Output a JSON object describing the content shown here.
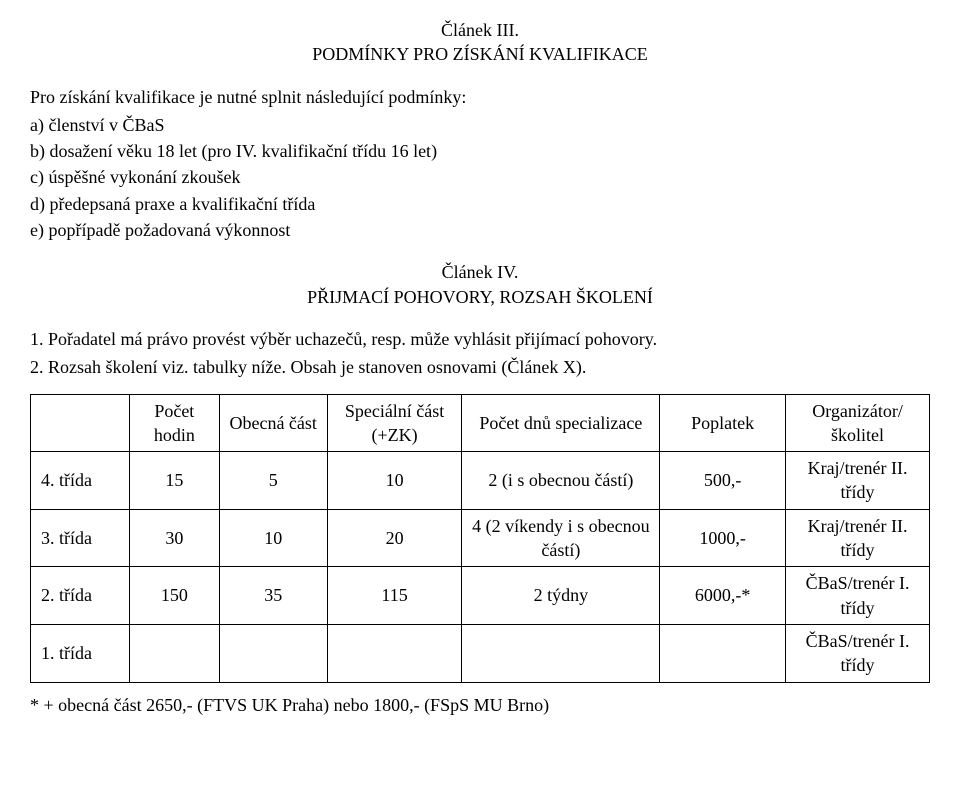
{
  "article3": {
    "title1": "Článek III.",
    "title2": "PODMÍNKY PRO ZÍSKÁNÍ KVALIFIKACE",
    "intro": "Pro získání kvalifikace je nutné splnit následující podmínky:",
    "items": {
      "a": "a) členství v ČBaS",
      "b": "b) dosažení věku 18 let (pro IV. kvalifikační třídu 16 let)",
      "c": "c) úspěšné vykonání zkoušek",
      "d": "d) předepsaná praxe a kvalifikační třída",
      "e": "e) popřípadě požadovaná výkonnost"
    }
  },
  "article4": {
    "title1": "Článek IV.",
    "title2": "PŘIJMACÍ POHOVORY, ROZSAH ŠKOLENÍ",
    "p1": "1. Pořadatel má právo provést výběr uchazečů, resp. může vyhlásit přijímací pohovory.",
    "p2": "2. Rozsah školení viz. tabulky níže. Obsah je stanoven osnovami (Článek X)."
  },
  "table": {
    "headers": {
      "col0": "",
      "col1": "Počet hodin",
      "col2": "Obecná část",
      "col3": "Speciální část (+ZK)",
      "col4": "Počet dnů specializace",
      "col5": "Poplatek",
      "col6": "Organizátor/ školitel"
    },
    "rows": [
      {
        "label": "4. třída",
        "hodin": "15",
        "obecna": "5",
        "special": "10",
        "dnu": "2 (i s obecnou částí)",
        "poplatek": "500,-",
        "org": "Kraj/trenér II. třídy"
      },
      {
        "label": "3. třída",
        "hodin": "30",
        "obecna": "10",
        "special": "20",
        "dnu": "4 (2 víkendy i s obecnou částí)",
        "poplatek": "1000,-",
        "org": "Kraj/trenér II. třídy"
      },
      {
        "label": "2. třída",
        "hodin": "150",
        "obecna": "35",
        "special": "115",
        "dnu": "2 týdny",
        "poplatek": "6000,-*",
        "org": "ČBaS/trenér I. třídy"
      },
      {
        "label": "1. třída",
        "hodin": "",
        "obecna": "",
        "special": "",
        "dnu": "",
        "poplatek": "",
        "org": "ČBaS/trenér I. třídy"
      }
    ],
    "footnote": "* + obecná část 2650,- (FTVS UK Praha) nebo 1800,- (FSpS MU Brno)"
  }
}
